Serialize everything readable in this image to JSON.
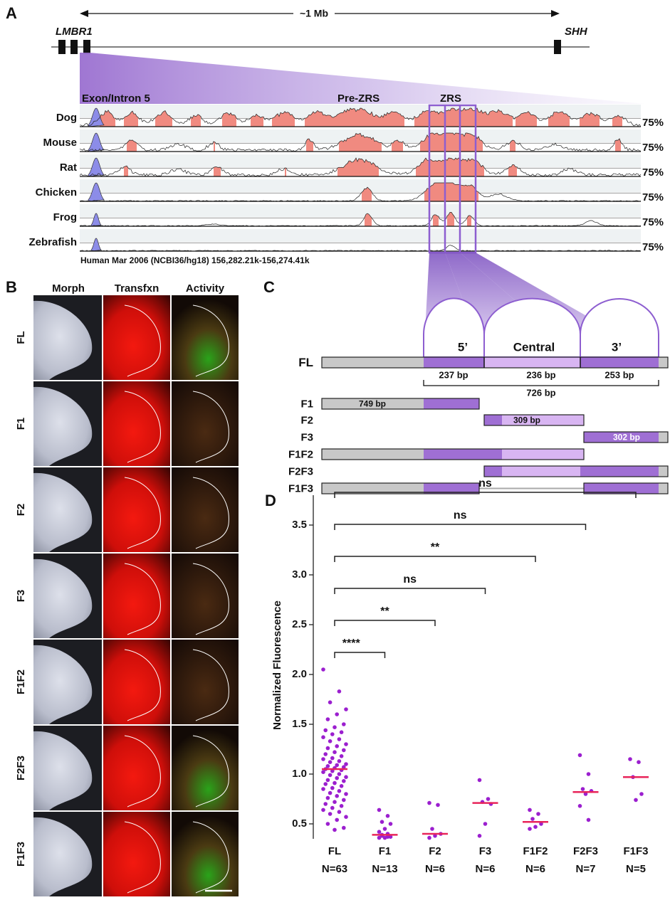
{
  "panel_a": {
    "label": "A",
    "scale": "~1 Mb",
    "genes": [
      "LMBR1",
      "SHH"
    ],
    "regions": [
      "Exon/Intron 5",
      "Pre-ZRS",
      "ZRS"
    ],
    "tracks": [
      {
        "species": "Dog",
        "identity": "75%"
      },
      {
        "species": "Mouse",
        "identity": "75%"
      },
      {
        "species": "Rat",
        "identity": "75%"
      },
      {
        "species": "Chicken",
        "identity": "75%"
      },
      {
        "species": "Frog",
        "identity": "75%"
      },
      {
        "species": "Zebrafish",
        "identity": "75%"
      }
    ],
    "caption": "Human Mar 2006 (NCBI36/hg18) 156,282.21k-156,274.41k"
  },
  "panel_b": {
    "label": "B",
    "columns": [
      "Morph",
      "Transfxn",
      "Activity"
    ],
    "rows": [
      "FL",
      "F1",
      "F2",
      "F3",
      "F1F2",
      "F2F3",
      "F1F3"
    ]
  },
  "panel_c": {
    "label": "C",
    "segments": [
      "5’",
      "Central",
      "3’"
    ],
    "segment_sizes": [
      "237 bp",
      "236 bp",
      "253 bp"
    ],
    "total": "726 bp",
    "constructs": [
      {
        "name": "FL"
      },
      {
        "name": "F1",
        "size": "749 bp"
      },
      {
        "name": "F2",
        "size": "309 bp"
      },
      {
        "name": "F3",
        "size": "302 bp"
      },
      {
        "name": "F1F2"
      },
      {
        "name": "F2F3"
      },
      {
        "name": "F1F3"
      }
    ]
  },
  "chart_data": {
    "type": "strip",
    "panel_label": "D",
    "ylabel": "Normalized Fluorescence",
    "categories": [
      "FL",
      "F1",
      "F2",
      "F3",
      "F1F2",
      "F2F3",
      "F1F3"
    ],
    "counts": [
      "N=63",
      "N=13",
      "N=6",
      "N=6",
      "N=6",
      "N=7",
      "N=5"
    ],
    "values": [
      [
        2.05,
        1.83,
        1.72,
        1.65,
        1.6,
        1.55,
        1.5,
        1.47,
        1.44,
        1.42,
        1.4,
        1.37,
        1.35,
        1.33,
        1.3,
        1.28,
        1.26,
        1.24,
        1.22,
        1.2,
        1.18,
        1.16,
        1.15,
        1.13,
        1.12,
        1.1,
        1.09,
        1.08,
        1.07,
        1.06,
        1.05,
        1.04,
        1.03,
        1.02,
        1.0,
        0.99,
        0.97,
        0.96,
        0.94,
        0.93,
        0.91,
        0.9,
        0.88,
        0.86,
        0.85,
        0.83,
        0.81,
        0.8,
        0.78,
        0.76,
        0.74,
        0.72,
        0.7,
        0.68,
        0.66,
        0.64,
        0.62,
        0.6,
        0.57,
        0.54,
        0.5,
        0.46,
        0.44
      ],
      [
        0.64,
        0.58,
        0.52,
        0.5,
        0.45,
        0.42,
        0.4,
        0.39,
        0.37,
        0.36,
        0.36,
        0.37,
        0.38
      ],
      [
        0.71,
        0.69,
        0.45,
        0.4,
        0.38,
        0.36
      ],
      [
        0.94,
        0.75,
        0.72,
        0.7,
        0.5,
        0.38
      ],
      [
        0.64,
        0.6,
        0.55,
        0.5,
        0.47,
        0.45
      ],
      [
        1.19,
        1.0,
        0.85,
        0.83,
        0.8,
        0.68,
        0.54
      ],
      [
        1.15,
        1.12,
        0.97,
        0.8,
        0.74
      ]
    ],
    "medians": [
      1.05,
      0.39,
      0.4,
      0.71,
      0.52,
      0.82,
      0.97
    ],
    "significance": [
      "****",
      "**",
      "ns",
      "**",
      "ns",
      "ns"
    ],
    "color": "#9b1fcf",
    "median_color": "#e8245a",
    "ylim": [
      0.35,
      3.8
    ],
    "yticks": [
      0.5,
      {
        "value": 1,
        "label": "1.0"
      },
      1.5,
      {
        "value": 2,
        "label": "2.0"
      },
      2.5,
      {
        "value": 3,
        "label": "3.0"
      },
      3.5
    ]
  }
}
